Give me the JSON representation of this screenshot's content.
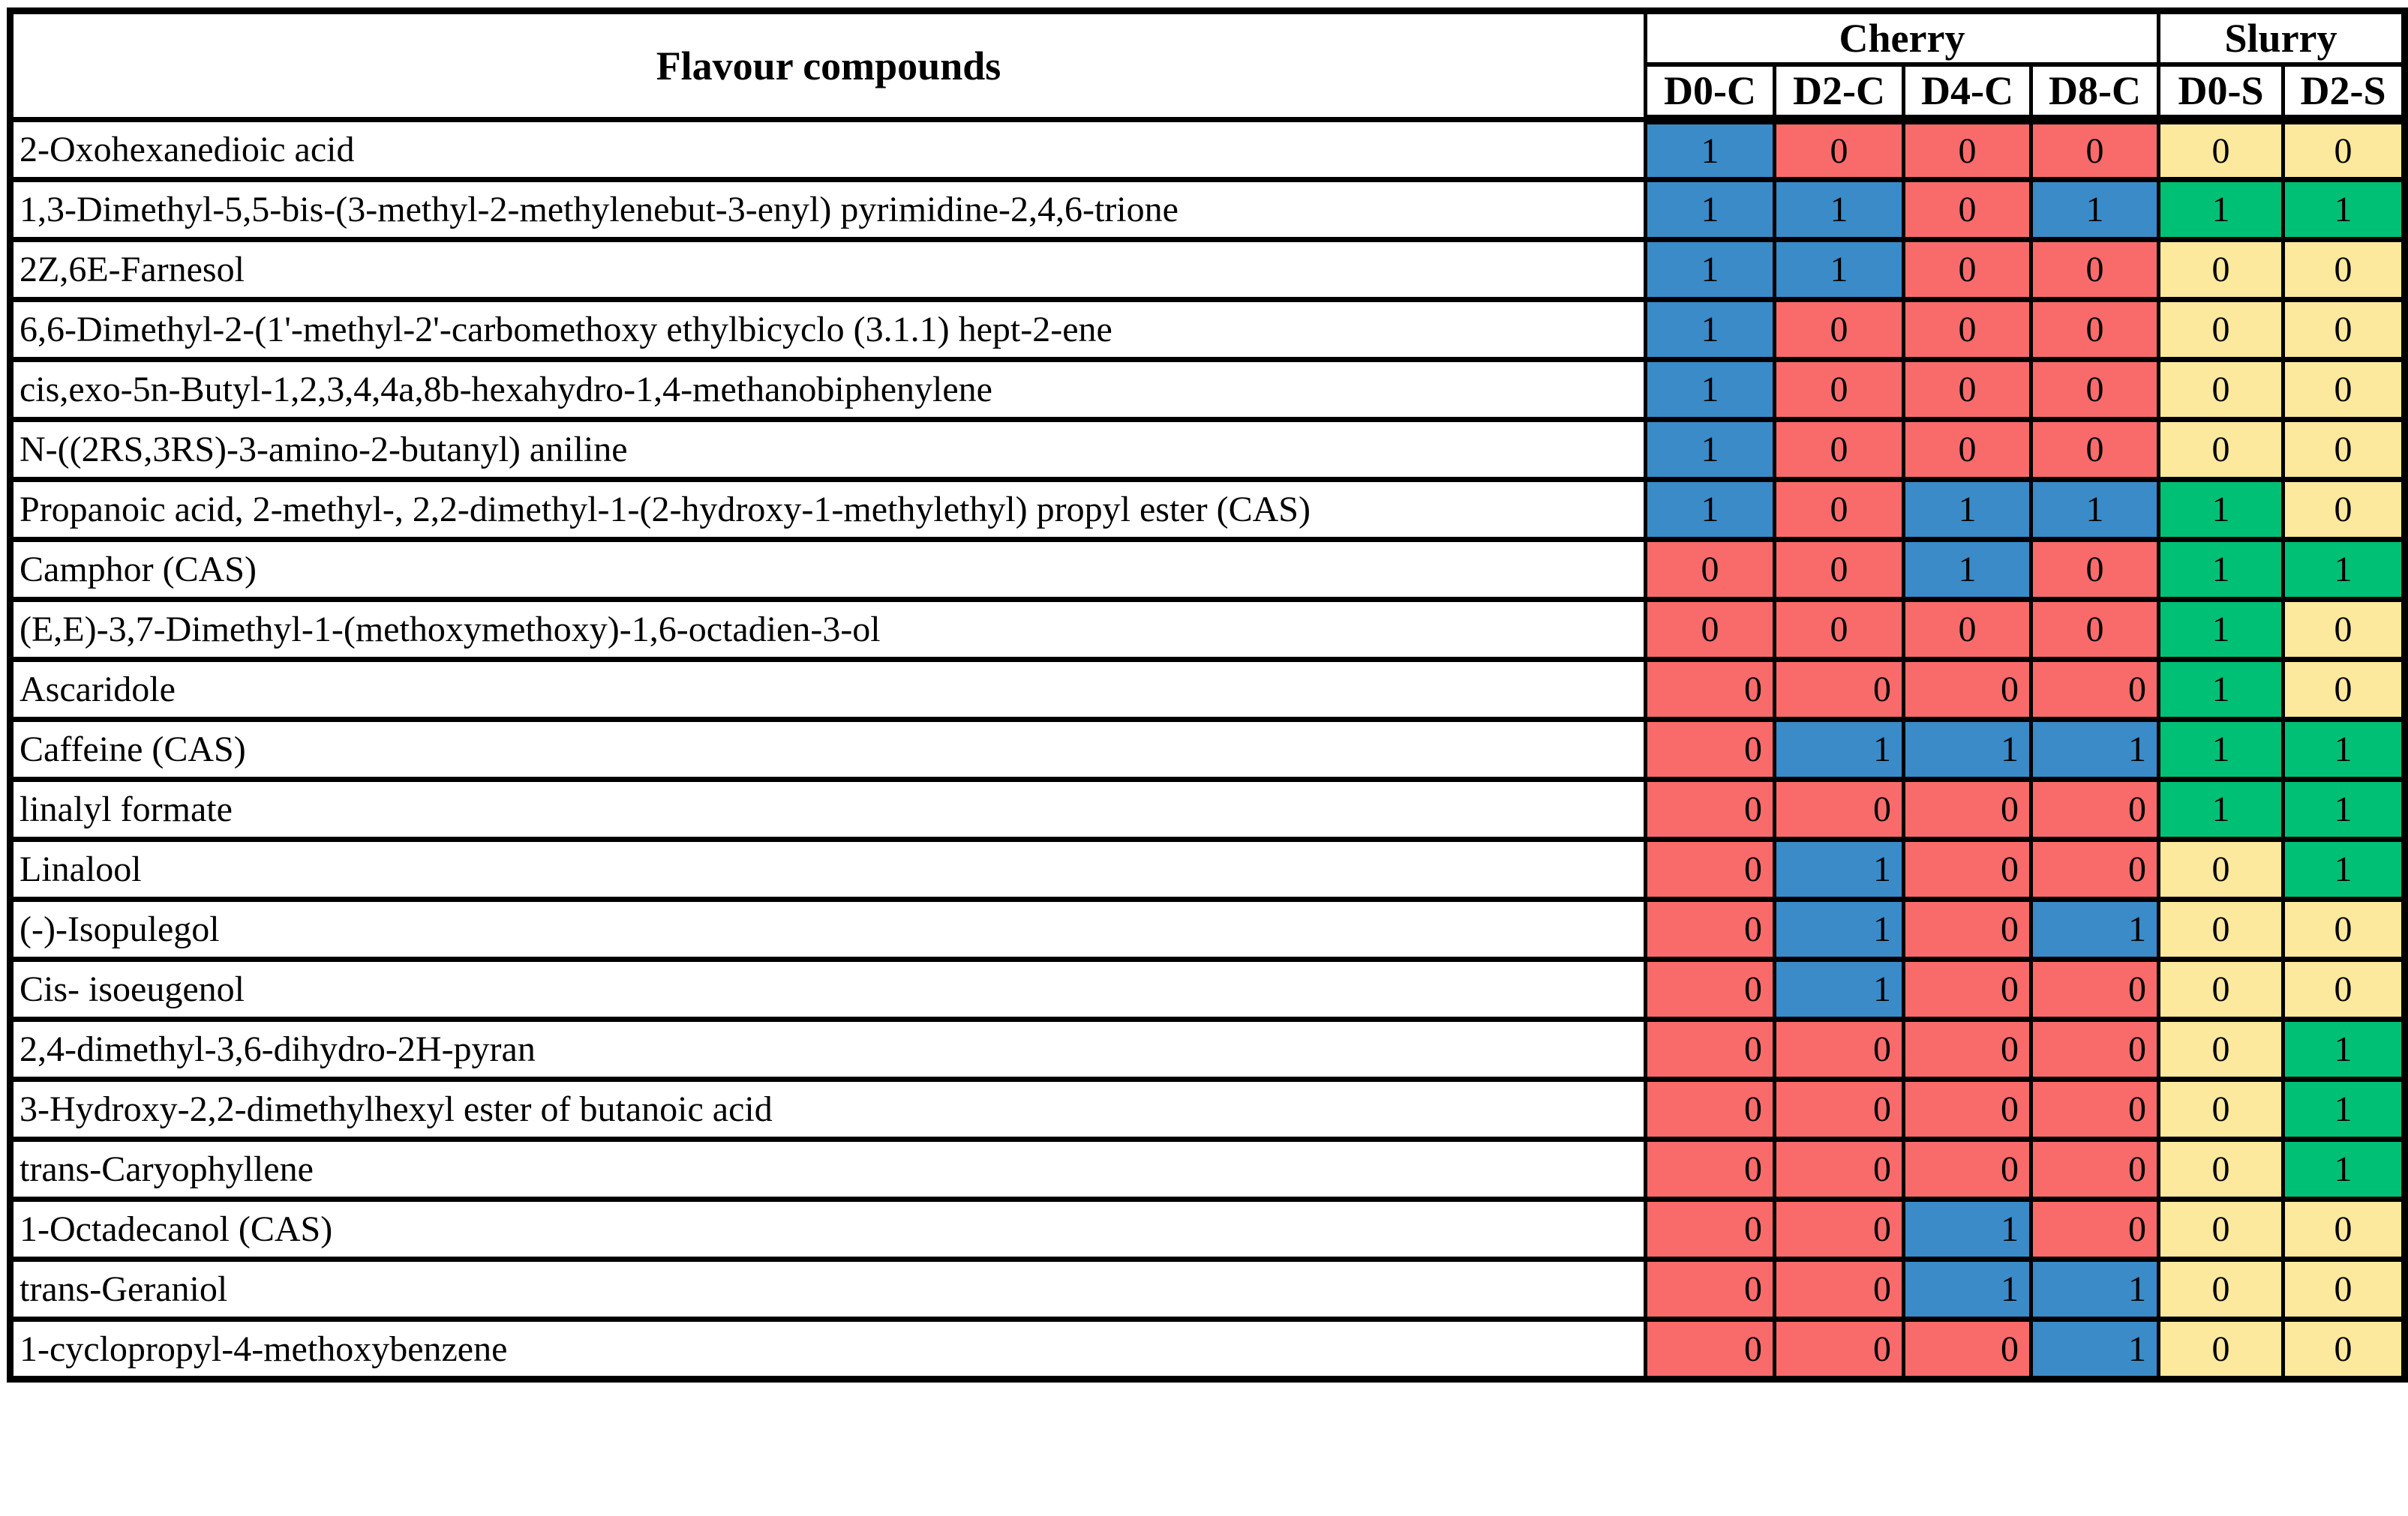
{
  "table": {
    "compound_header": "Flavour compounds",
    "groups": [
      {
        "label": "Cherry",
        "columns": [
          "D0-C",
          "D2-C",
          "D4-C",
          "D8-C"
        ]
      },
      {
        "label": "Slurry",
        "columns": [
          "D0-S",
          "D2-S"
        ]
      }
    ],
    "colors": {
      "blue": "#3A8BC8",
      "red": "#F96B6B",
      "yellow": "#FCE99E",
      "green": "#00C076"
    },
    "rows": [
      {
        "name": "2-Oxohexanedioic acid",
        "cells": [
          {
            "v": "1",
            "c": "blue",
            "a": "c"
          },
          {
            "v": "0",
            "c": "red",
            "a": "c"
          },
          {
            "v": "0",
            "c": "red",
            "a": "c"
          },
          {
            "v": "0",
            "c": "red",
            "a": "c"
          },
          {
            "v": "0",
            "c": "yellow",
            "a": "c"
          },
          {
            "v": "0",
            "c": "yellow",
            "a": "c"
          }
        ]
      },
      {
        "name": "1,3-Dimethyl-5,5-bis-(3-methyl-2-methylenebut-3-enyl) pyrimidine-2,4,6-trione",
        "cells": [
          {
            "v": "1",
            "c": "blue",
            "a": "c"
          },
          {
            "v": "1",
            "c": "blue",
            "a": "c"
          },
          {
            "v": "0",
            "c": "red",
            "a": "c"
          },
          {
            "v": "1",
            "c": "blue",
            "a": "c"
          },
          {
            "v": "1",
            "c": "green",
            "a": "c"
          },
          {
            "v": "1",
            "c": "green",
            "a": "c"
          }
        ]
      },
      {
        "name": "2Z,6E-Farnesol",
        "cells": [
          {
            "v": "1",
            "c": "blue",
            "a": "c"
          },
          {
            "v": "1",
            "c": "blue",
            "a": "c"
          },
          {
            "v": "0",
            "c": "red",
            "a": "c"
          },
          {
            "v": "0",
            "c": "red",
            "a": "c"
          },
          {
            "v": "0",
            "c": "yellow",
            "a": "c"
          },
          {
            "v": "0",
            "c": "yellow",
            "a": "c"
          }
        ]
      },
      {
        "name": "6,6-Dimethyl-2-(1'-methyl-2'-carbomethoxy ethylbicyclo (3.1.1) hept-2-ene",
        "cells": [
          {
            "v": "1",
            "c": "blue",
            "a": "c"
          },
          {
            "v": "0",
            "c": "red",
            "a": "c"
          },
          {
            "v": "0",
            "c": "red",
            "a": "c"
          },
          {
            "v": "0",
            "c": "red",
            "a": "c"
          },
          {
            "v": "0",
            "c": "yellow",
            "a": "c"
          },
          {
            "v": "0",
            "c": "yellow",
            "a": "c"
          }
        ]
      },
      {
        "name": "cis,exo-5n-Butyl-1,2,3,4,4a,8b-hexahydro-1,4-methanobiphenylene",
        "cells": [
          {
            "v": "1",
            "c": "blue",
            "a": "c"
          },
          {
            "v": "0",
            "c": "red",
            "a": "c"
          },
          {
            "v": "0",
            "c": "red",
            "a": "c"
          },
          {
            "v": "0",
            "c": "red",
            "a": "c"
          },
          {
            "v": "0",
            "c": "yellow",
            "a": "c"
          },
          {
            "v": "0",
            "c": "yellow",
            "a": "c"
          }
        ]
      },
      {
        "name": "N-((2RS,3RS)-3-amino-2-butanyl) aniline",
        "cells": [
          {
            "v": "1",
            "c": "blue",
            "a": "c"
          },
          {
            "v": "0",
            "c": "red",
            "a": "c"
          },
          {
            "v": "0",
            "c": "red",
            "a": "c"
          },
          {
            "v": "0",
            "c": "red",
            "a": "c"
          },
          {
            "v": "0",
            "c": "yellow",
            "a": "c"
          },
          {
            "v": "0",
            "c": "yellow",
            "a": "c"
          }
        ]
      },
      {
        "name": "Propanoic acid, 2-methyl-, 2,2-dimethyl-1-(2-hydroxy-1-methylethyl) propyl ester (CAS)",
        "cells": [
          {
            "v": "1",
            "c": "blue",
            "a": "c"
          },
          {
            "v": "0",
            "c": "red",
            "a": "c"
          },
          {
            "v": "1",
            "c": "blue",
            "a": "c"
          },
          {
            "v": "1",
            "c": "blue",
            "a": "c"
          },
          {
            "v": "1",
            "c": "green",
            "a": "c"
          },
          {
            "v": "0",
            "c": "yellow",
            "a": "c"
          }
        ]
      },
      {
        "name": "Camphor (CAS)",
        "cells": [
          {
            "v": "0",
            "c": "red",
            "a": "c"
          },
          {
            "v": "0",
            "c": "red",
            "a": "c"
          },
          {
            "v": "1",
            "c": "blue",
            "a": "c"
          },
          {
            "v": "0",
            "c": "red",
            "a": "c"
          },
          {
            "v": "1",
            "c": "green",
            "a": "c"
          },
          {
            "v": "1",
            "c": "green",
            "a": "c"
          }
        ]
      },
      {
        "name": "(E,E)-3,7-Dimethyl-1-(methoxymethoxy)-1,6-octadien-3-ol",
        "cells": [
          {
            "v": "0",
            "c": "red",
            "a": "c"
          },
          {
            "v": "0",
            "c": "red",
            "a": "c"
          },
          {
            "v": "0",
            "c": "red",
            "a": "c"
          },
          {
            "v": "0",
            "c": "red",
            "a": "c"
          },
          {
            "v": "1",
            "c": "green",
            "a": "c"
          },
          {
            "v": "0",
            "c": "yellow",
            "a": "c"
          }
        ]
      },
      {
        "name": "Ascaridole",
        "cells": [
          {
            "v": "0",
            "c": "red",
            "a": "r"
          },
          {
            "v": "0",
            "c": "red",
            "a": "r"
          },
          {
            "v": "0",
            "c": "red",
            "a": "r"
          },
          {
            "v": "0",
            "c": "red",
            "a": "r"
          },
          {
            "v": "1",
            "c": "green",
            "a": "c"
          },
          {
            "v": "0",
            "c": "yellow",
            "a": "c"
          }
        ]
      },
      {
        "name": "Caffeine (CAS)",
        "cells": [
          {
            "v": "0",
            "c": "red",
            "a": "r"
          },
          {
            "v": "1",
            "c": "blue",
            "a": "r"
          },
          {
            "v": "1",
            "c": "blue",
            "a": "r"
          },
          {
            "v": "1",
            "c": "blue",
            "a": "r"
          },
          {
            "v": "1",
            "c": "green",
            "a": "c"
          },
          {
            "v": "1",
            "c": "green",
            "a": "c"
          }
        ]
      },
      {
        "name": "linalyl formate",
        "cells": [
          {
            "v": "0",
            "c": "red",
            "a": "r"
          },
          {
            "v": "0",
            "c": "red",
            "a": "r"
          },
          {
            "v": "0",
            "c": "red",
            "a": "r"
          },
          {
            "v": "0",
            "c": "red",
            "a": "r"
          },
          {
            "v": "1",
            "c": "green",
            "a": "c"
          },
          {
            "v": "1",
            "c": "green",
            "a": "c"
          }
        ]
      },
      {
        "name": "Linalool",
        "cells": [
          {
            "v": "0",
            "c": "red",
            "a": "r"
          },
          {
            "v": "1",
            "c": "blue",
            "a": "r"
          },
          {
            "v": "0",
            "c": "red",
            "a": "r"
          },
          {
            "v": "0",
            "c": "red",
            "a": "r"
          },
          {
            "v": "0",
            "c": "yellow",
            "a": "c"
          },
          {
            "v": "1",
            "c": "green",
            "a": "c"
          }
        ]
      },
      {
        "name": "(-)-Isopulegol",
        "cells": [
          {
            "v": "0",
            "c": "red",
            "a": "r"
          },
          {
            "v": "1",
            "c": "blue",
            "a": "r"
          },
          {
            "v": "0",
            "c": "red",
            "a": "r"
          },
          {
            "v": "1",
            "c": "blue",
            "a": "r"
          },
          {
            "v": "0",
            "c": "yellow",
            "a": "c"
          },
          {
            "v": "0",
            "c": "yellow",
            "a": "c"
          }
        ]
      },
      {
        "name": "Cis- isoeugenol",
        "cells": [
          {
            "v": "0",
            "c": "red",
            "a": "r"
          },
          {
            "v": "1",
            "c": "blue",
            "a": "r"
          },
          {
            "v": "0",
            "c": "red",
            "a": "r"
          },
          {
            "v": "0",
            "c": "red",
            "a": "r"
          },
          {
            "v": "0",
            "c": "yellow",
            "a": "c"
          },
          {
            "v": "0",
            "c": "yellow",
            "a": "c"
          }
        ]
      },
      {
        "name": "2,4-dimethyl-3,6-dihydro-2H-pyran",
        "cells": [
          {
            "v": "0",
            "c": "red",
            "a": "r"
          },
          {
            "v": "0",
            "c": "red",
            "a": "r"
          },
          {
            "v": "0",
            "c": "red",
            "a": "r"
          },
          {
            "v": "0",
            "c": "red",
            "a": "r"
          },
          {
            "v": "0",
            "c": "yellow",
            "a": "c"
          },
          {
            "v": "1",
            "c": "green",
            "a": "c"
          }
        ]
      },
      {
        "name": "3-Hydroxy-2,2-dimethylhexyl ester of butanoic acid",
        "cells": [
          {
            "v": "0",
            "c": "red",
            "a": "r"
          },
          {
            "v": "0",
            "c": "red",
            "a": "r"
          },
          {
            "v": "0",
            "c": "red",
            "a": "r"
          },
          {
            "v": "0",
            "c": "red",
            "a": "r"
          },
          {
            "v": "0",
            "c": "yellow",
            "a": "c"
          },
          {
            "v": "1",
            "c": "green",
            "a": "c"
          }
        ]
      },
      {
        "name": "trans-Caryophyllene",
        "cells": [
          {
            "v": "0",
            "c": "red",
            "a": "r"
          },
          {
            "v": "0",
            "c": "red",
            "a": "r"
          },
          {
            "v": "0",
            "c": "red",
            "a": "r"
          },
          {
            "v": "0",
            "c": "red",
            "a": "r"
          },
          {
            "v": "0",
            "c": "yellow",
            "a": "c"
          },
          {
            "v": "1",
            "c": "green",
            "a": "c"
          }
        ]
      },
      {
        "name": "1-Octadecanol (CAS)",
        "cells": [
          {
            "v": "0",
            "c": "red",
            "a": "r"
          },
          {
            "v": "0",
            "c": "red",
            "a": "r"
          },
          {
            "v": "1",
            "c": "blue",
            "a": "r"
          },
          {
            "v": "0",
            "c": "red",
            "a": "r"
          },
          {
            "v": "0",
            "c": "yellow",
            "a": "c"
          },
          {
            "v": "0",
            "c": "yellow",
            "a": "c"
          }
        ]
      },
      {
        "name": "trans-Geraniol",
        "cells": [
          {
            "v": "0",
            "c": "red",
            "a": "r"
          },
          {
            "v": "0",
            "c": "red",
            "a": "r"
          },
          {
            "v": "1",
            "c": "blue",
            "a": "r"
          },
          {
            "v": "1",
            "c": "blue",
            "a": "r"
          },
          {
            "v": "0",
            "c": "yellow",
            "a": "c"
          },
          {
            "v": "0",
            "c": "yellow",
            "a": "c"
          }
        ]
      },
      {
        "name": "1-cyclopropyl-4-methoxybenzene",
        "cells": [
          {
            "v": "0",
            "c": "red",
            "a": "r"
          },
          {
            "v": "0",
            "c": "red",
            "a": "r"
          },
          {
            "v": "0",
            "c": "red",
            "a": "r"
          },
          {
            "v": "1",
            "c": "blue",
            "a": "r"
          },
          {
            "v": "0",
            "c": "yellow",
            "a": "c"
          },
          {
            "v": "0",
            "c": "yellow",
            "a": "c"
          }
        ]
      }
    ]
  }
}
